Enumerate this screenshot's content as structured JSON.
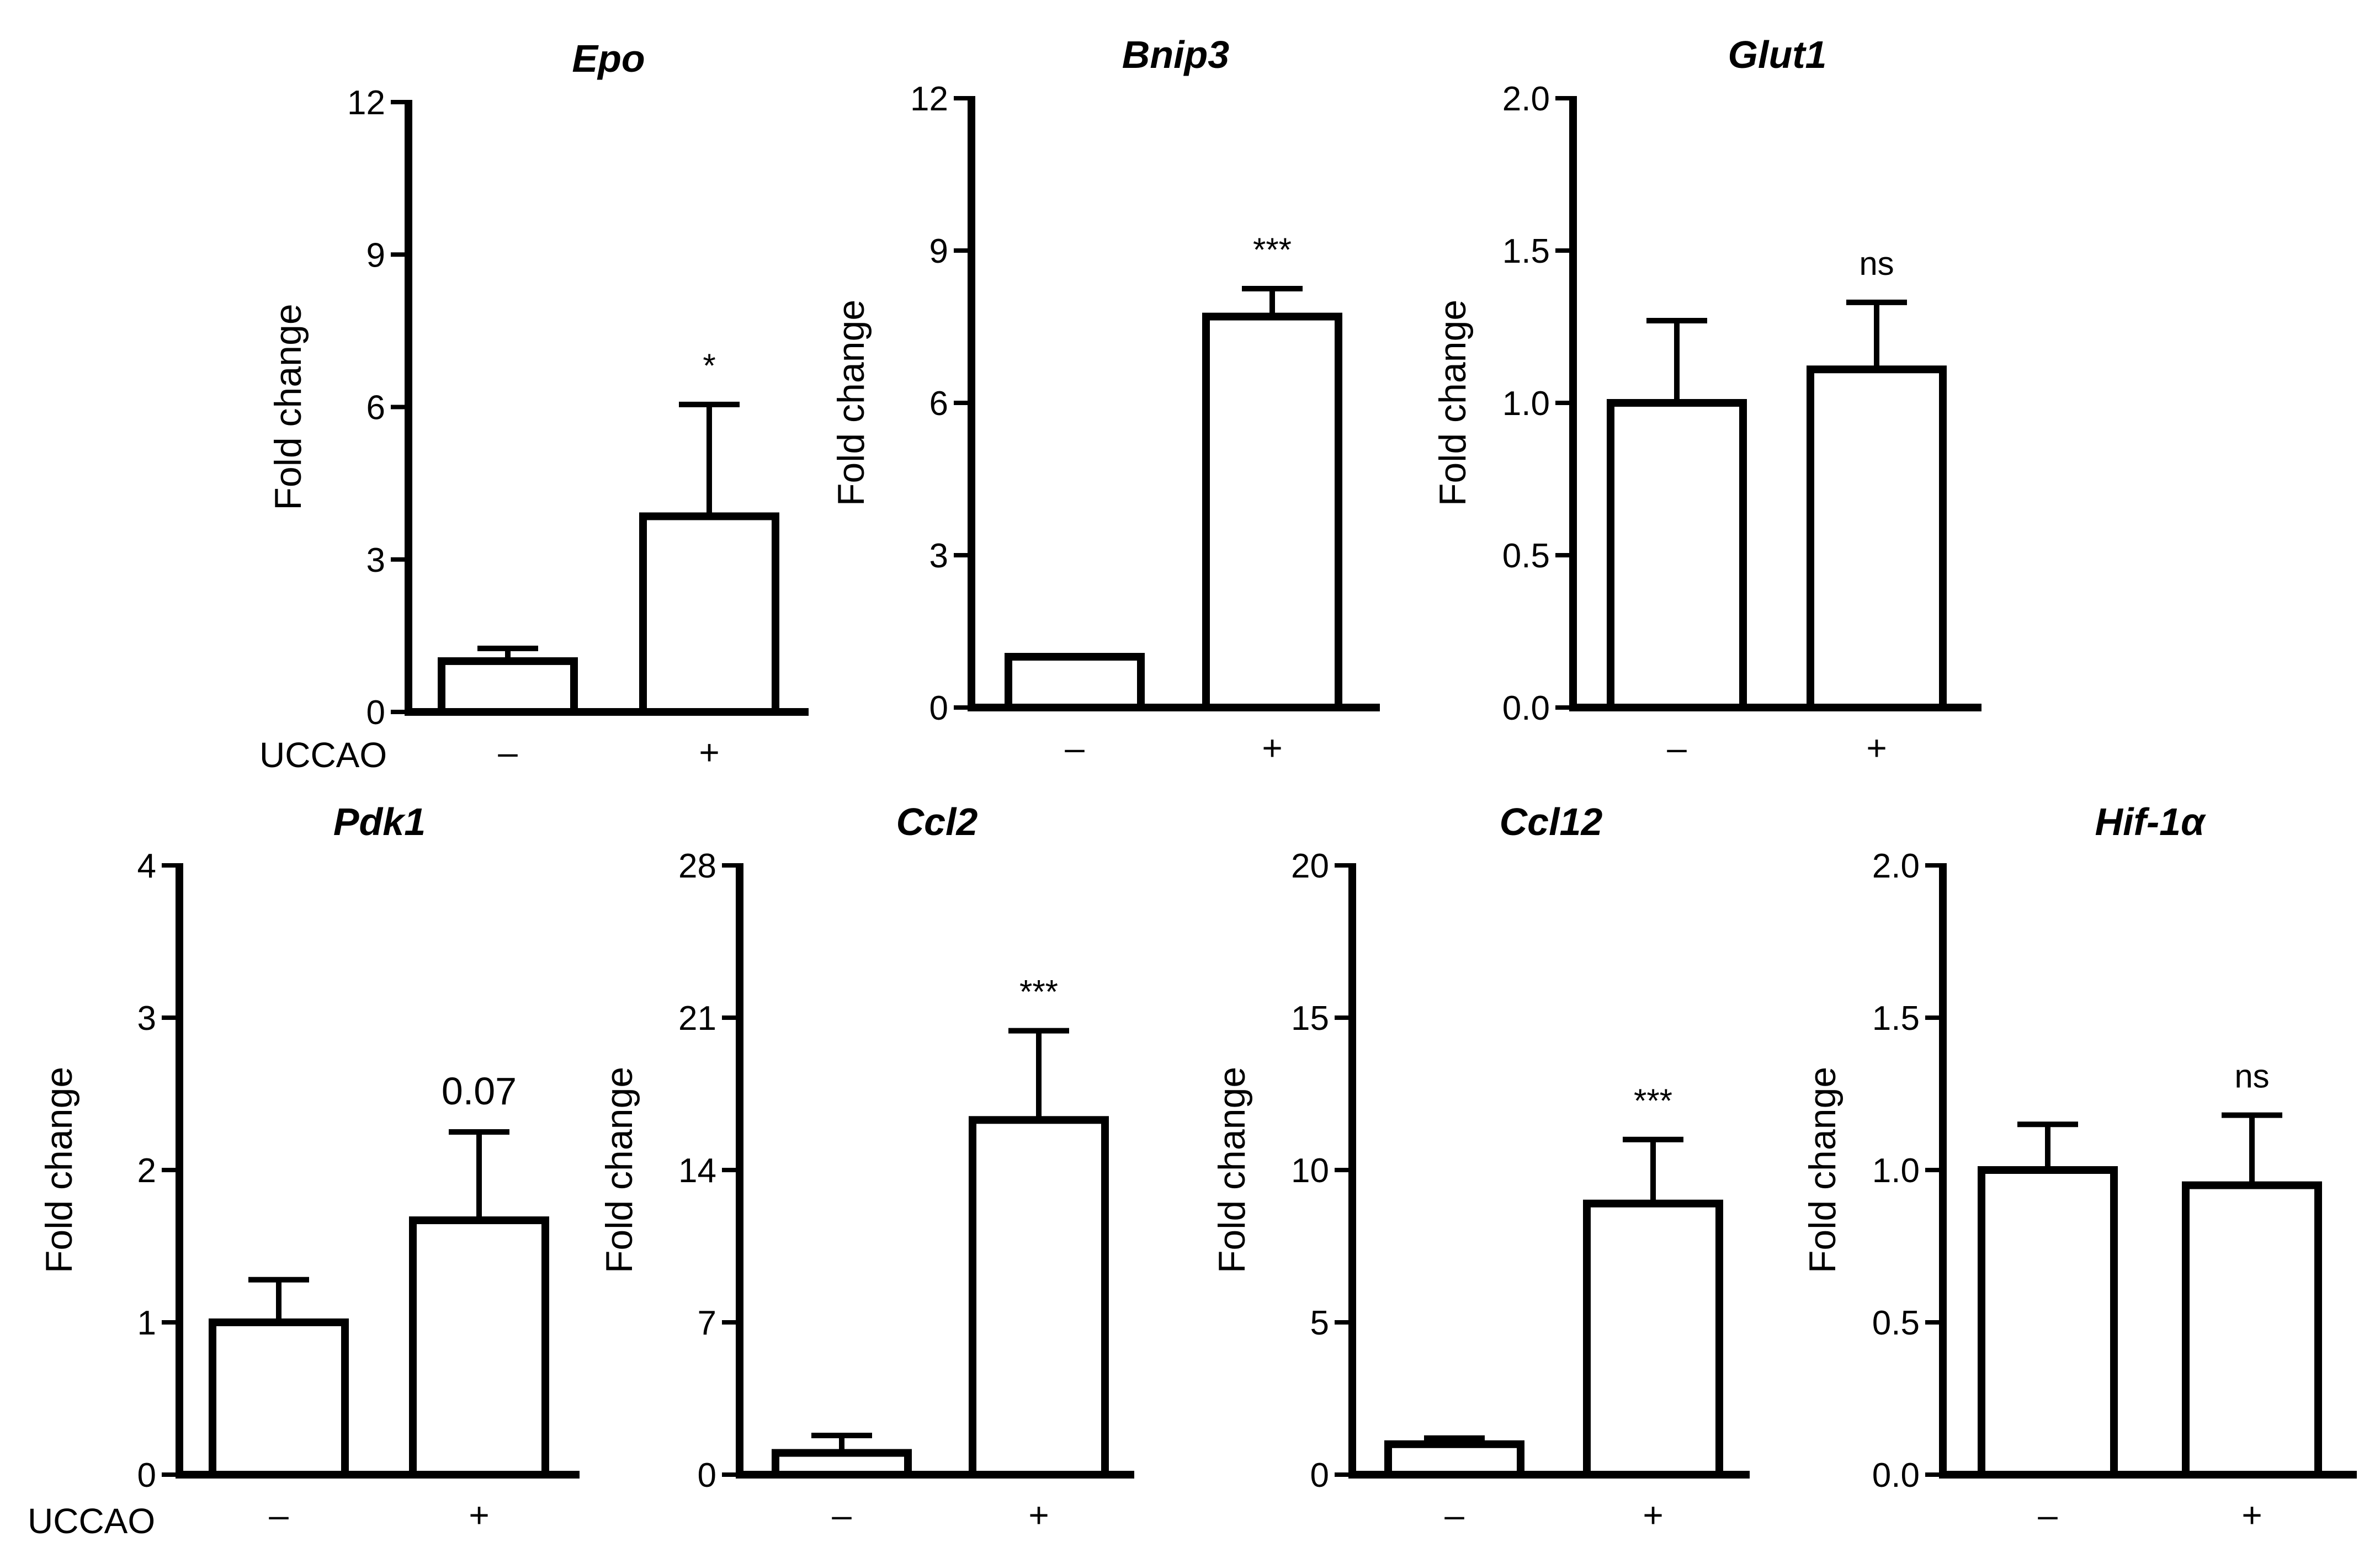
{
  "row_label": "UCCAO",
  "group_labels": [
    "–",
    "+"
  ],
  "chart_data": [
    {
      "type": "bar",
      "title": "Epo",
      "ylabel": "Fold change",
      "categories": [
        "–",
        "+"
      ],
      "values": [
        1.0,
        3.85
      ],
      "errors": [
        0.25,
        2.2
      ],
      "ylim": [
        0,
        12
      ],
      "yticks": [
        "0",
        "3",
        "6",
        "9",
        "12"
      ],
      "significance": "*"
    },
    {
      "type": "bar",
      "title": "Bnip3",
      "ylabel": "Fold change",
      "categories": [
        "–",
        "+"
      ],
      "values": [
        1.0,
        7.7
      ],
      "errors": [
        0.02,
        0.55
      ],
      "ylim": [
        0,
        12
      ],
      "yticks": [
        "0",
        "3",
        "6",
        "9",
        "12"
      ],
      "significance": "***"
    },
    {
      "type": "bar",
      "title": "Glut1",
      "ylabel": "Fold change",
      "categories": [
        "–",
        "+"
      ],
      "values": [
        1.0,
        1.11
      ],
      "errors": [
        0.27,
        0.22
      ],
      "ylim": [
        0,
        2
      ],
      "yticks": [
        "0.0",
        "0.5",
        "1.0",
        "1.5",
        "2.0"
      ],
      "significance": "ns"
    },
    {
      "type": "bar",
      "title": "Pdk1",
      "ylabel": "Fold change",
      "categories": [
        "–",
        "+"
      ],
      "values": [
        1.0,
        1.67
      ],
      "errors": [
        0.28,
        0.58
      ],
      "ylim": [
        0,
        4
      ],
      "yticks": [
        "0",
        "1",
        "2",
        "3",
        "4"
      ],
      "significance": "0.07"
    },
    {
      "type": "bar",
      "title": "Ccl2",
      "ylabel": "Fold change",
      "categories": [
        "–",
        "+"
      ],
      "values": [
        1.0,
        16.3
      ],
      "errors": [
        0.8,
        4.1
      ],
      "ylim": [
        0,
        28
      ],
      "yticks": [
        "0",
        "7",
        "14",
        "21",
        "28"
      ],
      "significance": "***"
    },
    {
      "type": "bar",
      "title": "Ccl12",
      "ylabel": "Fold change",
      "categories": [
        "–",
        "+"
      ],
      "values": [
        1.0,
        8.9
      ],
      "errors": [
        0.2,
        2.1
      ],
      "ylim": [
        0,
        20
      ],
      "yticks": [
        "0",
        "5",
        "10",
        "15",
        "20"
      ],
      "significance": "***"
    },
    {
      "type": "bar",
      "title": "Hif-1α",
      "ylabel": "Fold change",
      "categories": [
        "–",
        "+"
      ],
      "values": [
        1.0,
        0.95
      ],
      "errors": [
        0.15,
        0.23
      ],
      "ylim": [
        0,
        2
      ],
      "yticks": [
        "0.0",
        "0.5",
        "1.0",
        "1.5",
        "2.0"
      ],
      "significance": "ns"
    }
  ]
}
